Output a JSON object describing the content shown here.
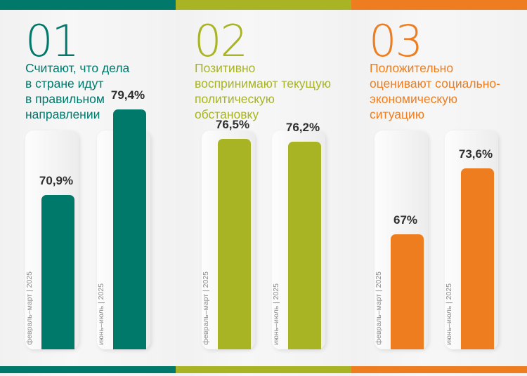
{
  "colors": {
    "green": "#00796b",
    "olive": "#a8b424",
    "orange": "#ee7d1f"
  },
  "blocks": [
    {
      "number": "01",
      "text": [
        "Считают, что дела",
        "в стране идут",
        "в правильном",
        "направлении"
      ],
      "color": "#00796b",
      "bars": [
        {
          "period": "февраль–март | 2025",
          "label": "70,9%"
        },
        {
          "period": "июнь–июль | 2025",
          "label": "79,4%"
        }
      ]
    },
    {
      "number": "02",
      "text": [
        "Позитивно",
        "воспринимают текущую",
        "политическую",
        "обстановку"
      ],
      "color": "#a8b424",
      "bars": [
        {
          "period": "февраль–март | 2025",
          "label": "76,5%"
        },
        {
          "period": "июнь–июль | 2025",
          "label": "76,2%"
        }
      ]
    },
    {
      "number": "03",
      "text": [
        "Положительно",
        "оценивают социально-",
        "экономическую",
        "ситуацию"
      ],
      "color": "#ee7d1f",
      "bars": [
        {
          "period": "февраль–март | 2025",
          "label": "67%"
        },
        {
          "period": "июнь–июль | 2025",
          "label": "73,6%"
        }
      ]
    }
  ],
  "chart_data": [
    {
      "type": "bar",
      "title": "Считают, что дела в стране идут в правильном направлении",
      "categories": [
        "февраль–март | 2025",
        "июнь–июль | 2025"
      ],
      "values": [
        70.9,
        79.4
      ],
      "ylim": [
        0,
        100
      ]
    },
    {
      "type": "bar",
      "title": "Позитивно воспринимают текущую политическую обстановку",
      "categories": [
        "февраль–март | 2025",
        "июнь–июль | 2025"
      ],
      "values": [
        76.5,
        76.2
      ],
      "ylim": [
        0,
        100
      ]
    },
    {
      "type": "bar",
      "title": "Положительно оценивают социально-экономическую ситуацию",
      "categories": [
        "февраль–март | 2025",
        "июнь–июль | 2025"
      ],
      "values": [
        67,
        73.6
      ],
      "ylim": [
        0,
        100
      ]
    }
  ]
}
